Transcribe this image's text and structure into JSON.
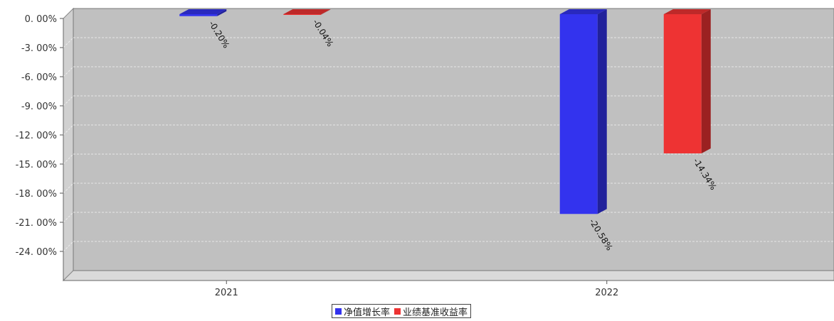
{
  "chart_data": {
    "type": "bar",
    "categories": [
      "2021",
      "2022"
    ],
    "series": [
      {
        "name": "净值增长率",
        "values": [
          -0.2,
          -20.58
        ],
        "labels": [
          "-0.20%",
          "-20.58%"
        ],
        "color": "#3333ee"
      },
      {
        "name": "业绩基准收益率",
        "values": [
          -0.04,
          -14.34
        ],
        "labels": [
          "-0.04%",
          "-14.34%"
        ],
        "color": "#ee3333"
      }
    ],
    "ylim": [
      -27,
      0
    ],
    "yticks": [
      0,
      -3,
      -6,
      -9,
      -12,
      -15,
      -18,
      -21,
      -24
    ],
    "ytick_labels": [
      "0. 00%",
      "-3. 00%",
      "-6. 00%",
      "-9. 00%",
      "-12. 00%",
      "-15. 00%",
      "-18. 00%",
      "-21. 00%",
      "-24. 00%"
    ],
    "grid": true,
    "legend_position": "bottom",
    "plot_background": "#c0c0c0"
  }
}
